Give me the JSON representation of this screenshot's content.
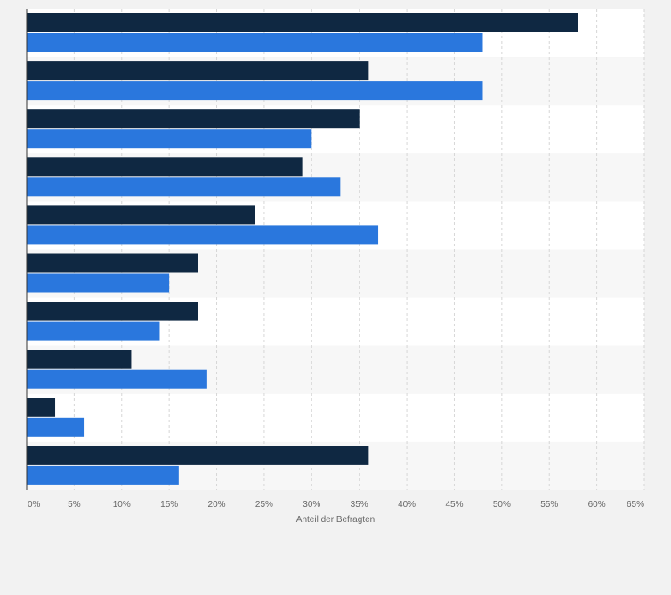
{
  "chart_data": {
    "type": "bar",
    "orientation": "horizontal",
    "title": "",
    "xlabel": "Anteil der Befragten",
    "ylabel": "",
    "xlim": [
      0,
      65
    ],
    "x_ticks": [
      "0%",
      "5%",
      "10%",
      "15%",
      "20%",
      "25%",
      "30%",
      "35%",
      "40%",
      "45%",
      "50%",
      "55%",
      "60%",
      "65%"
    ],
    "tick_values": [
      0,
      5,
      10,
      15,
      20,
      25,
      30,
      35,
      40,
      45,
      50,
      55,
      60,
      65
    ],
    "grid": true,
    "legend": "none",
    "categories": [
      "",
      "",
      "",
      "",
      "",
      "",
      "",
      "",
      "",
      ""
    ],
    "series": [
      {
        "color": "#0f2842",
        "values": [
          58,
          36,
          35,
          29,
          24,
          18,
          18,
          11,
          3,
          36
        ]
      },
      {
        "color": "#2a77dd",
        "values": [
          48,
          48,
          30,
          33,
          37,
          15,
          14,
          19,
          6,
          16
        ]
      }
    ]
  }
}
